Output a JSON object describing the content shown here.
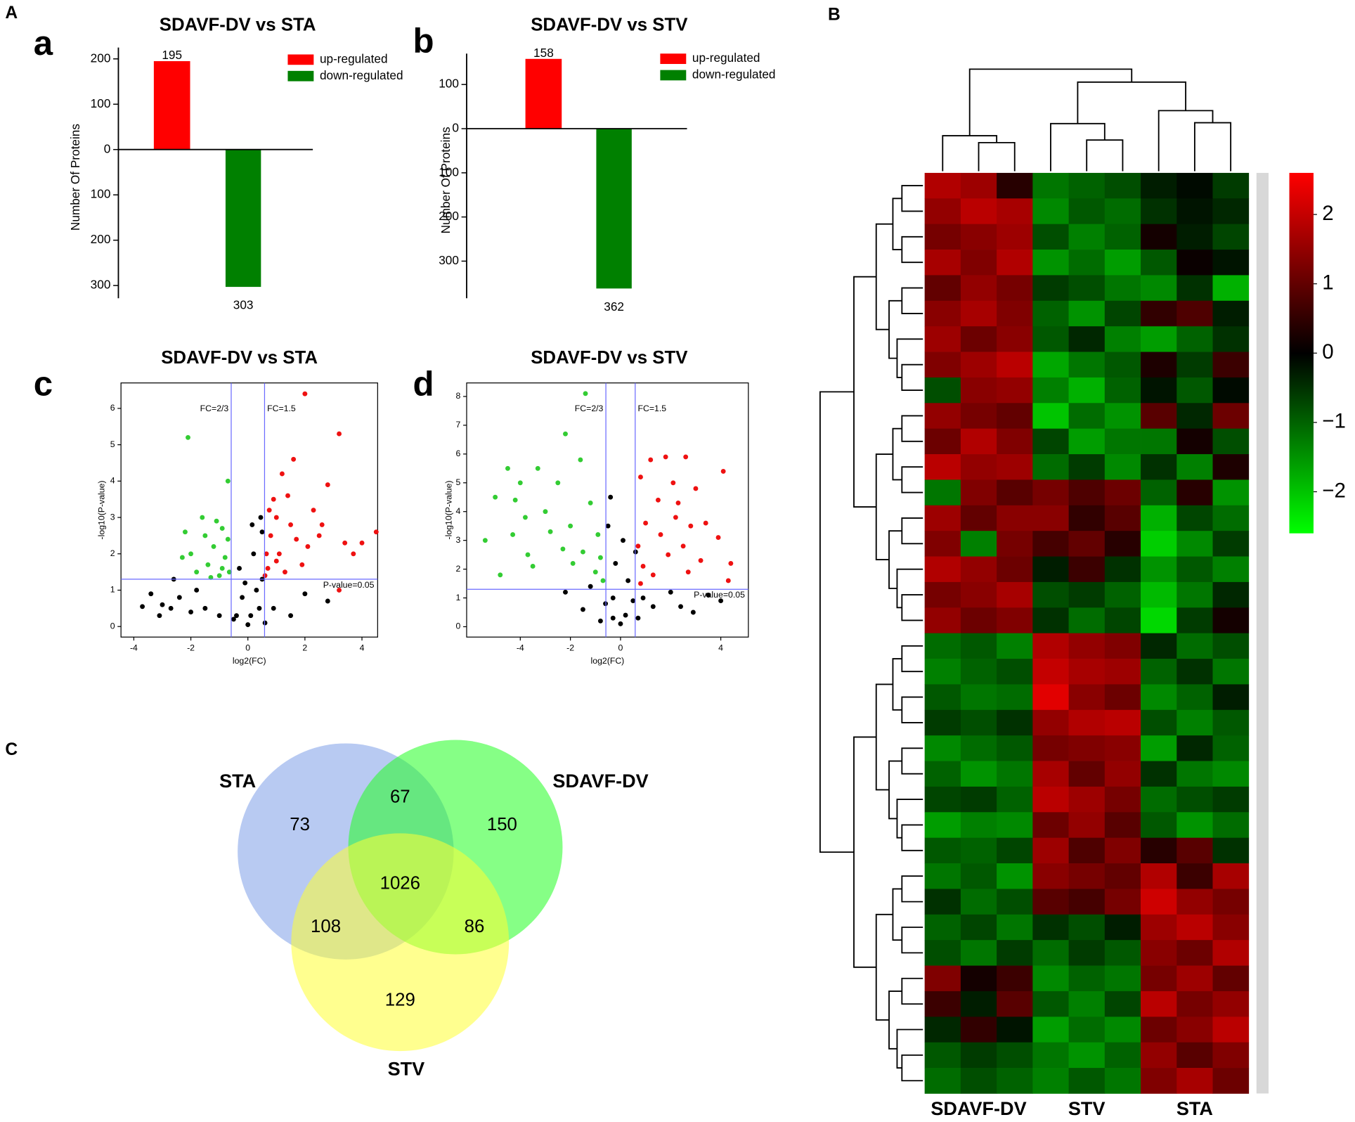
{
  "figure_labels": [
    "A",
    "B",
    "C"
  ],
  "chart_data": [
    {
      "type": "bar",
      "panel_label": "a",
      "title": "SDAVF-DV vs STA",
      "ylabel": "Number Of Proteins",
      "ylim": [
        -328,
        225
      ],
      "yticks": [
        {
          "value": -300,
          "label": "300"
        },
        {
          "value": -200,
          "label": "200"
        },
        {
          "value": -100,
          "label": "100"
        },
        0,
        100,
        200
      ],
      "series": [
        {
          "name": "up-regulated",
          "color": "#ff0000",
          "values": [
            195
          ]
        },
        {
          "name": "down-regulated",
          "color": "#008000",
          "values": [
            -303
          ],
          "value_labels": [
            "303"
          ]
        }
      ]
    },
    {
      "type": "bar",
      "panel_label": "b",
      "title": "SDAVF-DV vs STV",
      "ylabel": "Number Of Proteins",
      "ylim": [
        -384,
        170
      ],
      "yticks": [
        {
          "value": -300,
          "label": "300"
        },
        {
          "value": -200,
          "label": "200"
        },
        {
          "value": -100,
          "label": "100"
        },
        0,
        100
      ],
      "series": [
        {
          "name": "up-regulated",
          "color": "#ff0000",
          "values": [
            158
          ]
        },
        {
          "name": "down-regulated",
          "color": "#008000",
          "values": [
            -362
          ],
          "value_labels": [
            "362"
          ]
        }
      ]
    },
    {
      "type": "scatter",
      "panel_label": "c",
      "title": "SDAVF-DV vs STA",
      "xlabel": "log2(FC)",
      "ylabel": "-log10(P-value)",
      "xlim": [
        -4.45,
        4.55
      ],
      "ylim": [
        -0.29,
        6.7
      ],
      "xticks": [
        -4,
        -2,
        0,
        2,
        4
      ],
      "yticks": [
        0,
        1,
        2,
        3,
        4,
        5,
        6
      ],
      "thresholds": {
        "x": [
          -0.585,
          0.585
        ],
        "y": 1.301,
        "color": "#6a6aff"
      },
      "annotations": [
        "FC=2/3",
        "FC=1.5",
        "P-value=0.05"
      ],
      "series": [
        {
          "color": "#ee1111",
          "x": [
            2.0,
            3.2,
            1.6,
            2.8,
            1.2,
            2.3,
            2.6,
            3.4,
            4.5,
            3.7,
            4.0,
            3.2,
            1.0,
            0.8,
            1.5,
            1.1,
            0.7,
            1.9,
            2.1,
            0.9,
            1.3,
            0.65,
            1.7,
            0.75,
            1.0,
            2.5,
            1.4,
            0.6
          ],
          "values": [
            6.4,
            5.3,
            4.6,
            3.9,
            4.2,
            3.2,
            2.8,
            2.3,
            2.6,
            2.0,
            2.3,
            1.0,
            3.0,
            2.5,
            2.8,
            2.0,
            1.6,
            1.7,
            2.2,
            3.5,
            1.5,
            2.0,
            2.4,
            3.2,
            1.8,
            2.5,
            3.6,
            1.4
          ]
        },
        {
          "color": "#33cc33",
          "x": [
            -2.1,
            -0.7,
            -1.6,
            -0.9,
            -1.2,
            -0.8,
            -2.0,
            -1.4,
            -0.7,
            -1.8,
            -1.0,
            -2.3,
            -1.5,
            -0.9,
            -1.1,
            -0.65,
            -1.3,
            -2.2
          ],
          "values": [
            5.2,
            4.0,
            3.0,
            2.7,
            2.2,
            1.9,
            2.0,
            1.7,
            2.4,
            1.5,
            1.4,
            1.9,
            2.5,
            1.6,
            2.9,
            1.5,
            1.35,
            2.6
          ]
        },
        {
          "color": "#000000",
          "x": [
            -3.7,
            -3.4,
            -3.0,
            -2.7,
            -2.4,
            -2.0,
            -1.5,
            -1.0,
            -0.5,
            0,
            0.1,
            -0.2,
            0.3,
            0.4,
            0.5,
            -0.3,
            0.2,
            0.5,
            -0.1,
            0.9,
            1.5,
            2.0,
            2.8,
            -2.6,
            -1.8,
            0.6,
            -0.4,
            0.15,
            0.45,
            -3.1
          ],
          "values": [
            0.55,
            0.9,
            0.6,
            0.5,
            0.8,
            0.4,
            0.5,
            0.3,
            0.2,
            0.05,
            0.3,
            0.8,
            1.0,
            0.5,
            1.3,
            1.6,
            2.0,
            2.6,
            1.2,
            0.5,
            0.3,
            0.9,
            0.7,
            1.3,
            1.0,
            0.1,
            0.3,
            2.8,
            3.0,
            0.3
          ]
        }
      ]
    },
    {
      "type": "scatter",
      "panel_label": "d",
      "title": "SDAVF-DV vs STV",
      "xlabel": "log2(FC)",
      "ylabel": "-log10(P-value)",
      "xlim": [
        -6.14,
        5.1
      ],
      "ylim": [
        -0.36,
        8.47
      ],
      "xticks": [
        -4,
        -2,
        0,
        4
      ],
      "yticks": [
        0,
        1,
        2,
        3,
        4,
        5,
        6,
        7,
        8
      ],
      "thresholds": {
        "x": [
          -0.585,
          0.585
        ],
        "y": 1.301,
        "color": "#6a6aff"
      },
      "annotations": [
        "FC=2/3",
        "FC=1.5",
        "P-value=0.05"
      ],
      "series": [
        {
          "color": "#ee1111",
          "x": [
            1.2,
            1.8,
            2.6,
            4.1,
            0.8,
            2.1,
            3.0,
            1.5,
            2.3,
            3.4,
            2.8,
            3.9,
            4.4,
            1.0,
            1.6,
            0.7,
            1.9,
            2.5,
            3.2,
            0.9,
            1.3,
            2.7,
            0.8,
            4.3,
            2.2
          ],
          "values": [
            5.8,
            5.9,
            5.9,
            5.4,
            5.2,
            5.0,
            4.8,
            4.4,
            4.3,
            3.6,
            3.5,
            3.1,
            2.2,
            3.6,
            3.2,
            2.8,
            2.5,
            2.8,
            2.3,
            2.1,
            1.8,
            1.9,
            1.5,
            1.6,
            3.8
          ]
        },
        {
          "color": "#33cc33",
          "x": [
            -1.4,
            -2.2,
            -1.6,
            -2.5,
            -4.0,
            -4.5,
            -3.3,
            -5.0,
            -4.2,
            -3.0,
            -3.8,
            -2.0,
            -4.3,
            -5.4,
            -2.8,
            -1.2,
            -0.9,
            -1.5,
            -0.8,
            -2.3,
            -3.7,
            -4.8,
            -1.0,
            -3.5,
            -0.7,
            -1.9
          ],
          "values": [
            8.1,
            6.7,
            5.8,
            5.0,
            5.0,
            5.5,
            5.5,
            4.5,
            4.4,
            4.0,
            3.8,
            3.5,
            3.2,
            3.0,
            3.3,
            4.3,
            3.2,
            2.6,
            2.4,
            2.7,
            2.5,
            1.8,
            1.9,
            2.1,
            1.6,
            2.2
          ]
        },
        {
          "color": "#000000",
          "x": [
            -2.2,
            -1.2,
            -0.6,
            -0.3,
            0,
            0.2,
            0.5,
            0.3,
            -0.2,
            -0.5,
            -0.4,
            0.6,
            0.9,
            1.3,
            2.0,
            2.9,
            4.0,
            -1.5,
            -0.8,
            0.1,
            -0.3,
            0.7,
            2.4,
            3.5
          ],
          "values": [
            1.2,
            1.4,
            0.8,
            0.3,
            0.1,
            0.4,
            0.9,
            1.6,
            2.2,
            3.5,
            4.5,
            2.6,
            1.0,
            0.7,
            1.2,
            0.5,
            0.9,
            0.6,
            0.2,
            3.0,
            1.0,
            0.3,
            0.7,
            1.1
          ]
        }
      ]
    },
    {
      "type": "venn",
      "sets": [
        {
          "name": "STA",
          "color": "#7d9fe8"
        },
        {
          "name": "SDAVF-DV",
          "color": "#22ff22"
        },
        {
          "name": "STV",
          "color": "#ffff33"
        }
      ],
      "regions": [
        {
          "sets": [
            "STA"
          ],
          "value": 73
        },
        {
          "sets": [
            "STA",
            "SDAVF-DV"
          ],
          "value": 67
        },
        {
          "sets": [
            "SDAVF-DV"
          ],
          "value": 150
        },
        {
          "sets": [
            "STA",
            "SDAVF-DV",
            "STV"
          ],
          "value": 1026
        },
        {
          "sets": [
            "STA",
            "STV"
          ],
          "value": 108
        },
        {
          "sets": [
            "SDAVF-DV",
            "STV"
          ],
          "value": 86
        },
        {
          "sets": [
            "STV"
          ],
          "value": 129
        }
      ]
    },
    {
      "type": "heatmap",
      "groups": [
        "SDAVF-DV",
        "STV",
        "STA"
      ],
      "zlim": [
        -2.6,
        2.6
      ],
      "colors": [
        "#00ff00",
        "#000000",
        "#ff0000"
      ],
      "zticks": [
        2,
        1,
        0,
        {
          "value": -1,
          "label": "−1"
        },
        {
          "value": -2,
          "label": "−2"
        }
      ],
      "values": [
        [
          1.8,
          1.6,
          0.4,
          -1.2,
          -1.0,
          -0.8,
          -0.3,
          -0.1,
          -0.6
        ],
        [
          1.5,
          1.9,
          1.7,
          -1.4,
          -0.9,
          -1.1,
          -0.5,
          -0.2,
          -0.4
        ],
        [
          1.2,
          1.4,
          1.6,
          -0.8,
          -1.3,
          -1.0,
          0.2,
          -0.3,
          -0.7
        ],
        [
          1.7,
          1.3,
          1.8,
          -1.5,
          -1.1,
          -1.6,
          -0.9,
          0.1,
          -0.2
        ],
        [
          1.0,
          1.5,
          1.2,
          -0.6,
          -0.8,
          -1.2,
          -1.4,
          -0.5,
          -1.8
        ],
        [
          1.4,
          1.7,
          1.3,
          -1.0,
          -1.5,
          -0.7,
          0.5,
          0.8,
          -0.3
        ],
        [
          1.6,
          1.1,
          1.4,
          -0.9,
          -0.4,
          -1.3,
          -1.6,
          -1.0,
          -0.5
        ],
        [
          1.3,
          1.6,
          1.9,
          -1.7,
          -1.2,
          -0.9,
          0.3,
          -0.6,
          0.6
        ],
        [
          -0.8,
          1.4,
          1.5,
          -1.3,
          -1.8,
          -1.0,
          -0.2,
          -0.9,
          -0.1
        ],
        [
          1.5,
          1.2,
          1.0,
          -2.0,
          -1.1,
          -1.5,
          0.9,
          -0.4,
          1.1
        ],
        [
          1.1,
          1.8,
          1.3,
          -0.7,
          -1.6,
          -1.2,
          -1.2,
          0.2,
          -0.8
        ],
        [
          1.9,
          1.5,
          1.6,
          -1.1,
          -0.6,
          -1.4,
          -0.5,
          -1.3,
          0.3
        ],
        [
          -1.2,
          1.3,
          0.9,
          1.2,
          0.8,
          1.1,
          -1.0,
          0.4,
          -1.5
        ],
        [
          1.6,
          1.0,
          1.4,
          1.4,
          0.5,
          0.9,
          -1.8,
          -0.7,
          -1.1
        ],
        [
          1.3,
          -1.3,
          1.2,
          0.7,
          1.0,
          0.4,
          -2.1,
          -1.4,
          -0.6
        ],
        [
          1.8,
          1.5,
          1.1,
          -0.3,
          0.6,
          -0.5,
          -1.5,
          -0.9,
          -1.3
        ],
        [
          1.2,
          1.4,
          1.7,
          -0.8,
          -0.6,
          -1.0,
          -1.9,
          -1.2,
          -0.4
        ],
        [
          1.5,
          1.1,
          1.3,
          -0.5,
          -1.1,
          -0.7,
          -2.2,
          -0.6,
          0.2
        ],
        [
          -1.1,
          -0.9,
          -1.3,
          1.8,
          1.5,
          1.3,
          -0.4,
          -1.1,
          -0.8
        ],
        [
          -1.3,
          -1.0,
          -0.8,
          2.0,
          1.7,
          1.6,
          -1.0,
          -0.5,
          -1.2
        ],
        [
          -0.9,
          -1.2,
          -1.1,
          2.3,
          1.4,
          1.1,
          -1.4,
          -1.0,
          -0.3
        ],
        [
          -0.6,
          -0.8,
          -0.5,
          1.5,
          1.8,
          1.9,
          -0.8,
          -1.3,
          -0.9
        ],
        [
          -1.4,
          -1.1,
          -0.9,
          1.2,
          1.3,
          1.4,
          -1.6,
          -0.4,
          -1.0
        ],
        [
          -1.0,
          -1.5,
          -1.2,
          1.7,
          1.0,
          1.5,
          -0.5,
          -1.2,
          -1.4
        ],
        [
          -0.7,
          -0.6,
          -1.0,
          1.9,
          1.6,
          1.2,
          -1.1,
          -0.8,
          -0.6
        ],
        [
          -1.6,
          -1.3,
          -1.4,
          1.1,
          1.5,
          0.9,
          -0.9,
          -1.5,
          -1.1
        ],
        [
          -0.9,
          -1.0,
          -0.7,
          1.6,
          0.8,
          1.3,
          0.4,
          0.9,
          -0.5
        ],
        [
          -1.2,
          -0.9,
          -1.5,
          1.4,
          1.2,
          1.0,
          1.8,
          0.6,
          1.7
        ],
        [
          -0.5,
          -1.1,
          -0.8,
          0.9,
          0.7,
          1.2,
          2.1,
          1.5,
          1.2
        ],
        [
          -1.0,
          -0.7,
          -1.2,
          -0.5,
          -0.8,
          -0.3,
          1.6,
          1.9,
          1.4
        ],
        [
          -0.8,
          -1.2,
          -0.6,
          -1.1,
          -0.6,
          -0.9,
          1.4,
          1.1,
          1.8
        ],
        [
          1.3,
          0.2,
          0.6,
          -1.4,
          -1.0,
          -1.2,
          1.2,
          1.6,
          1.0
        ],
        [
          0.6,
          -0.3,
          0.9,
          -0.9,
          -1.3,
          -0.7,
          1.9,
          1.2,
          1.5
        ],
        [
          -0.4,
          0.5,
          -0.2,
          -1.6,
          -1.1,
          -1.4,
          1.1,
          1.4,
          1.9
        ],
        [
          -0.9,
          -0.6,
          -0.8,
          -1.2,
          -1.5,
          -1.0,
          1.5,
          0.9,
          1.3
        ],
        [
          -1.1,
          -0.8,
          -1.0,
          -1.3,
          -0.9,
          -1.2,
          1.3,
          1.7,
          1.1
        ]
      ]
    }
  ]
}
